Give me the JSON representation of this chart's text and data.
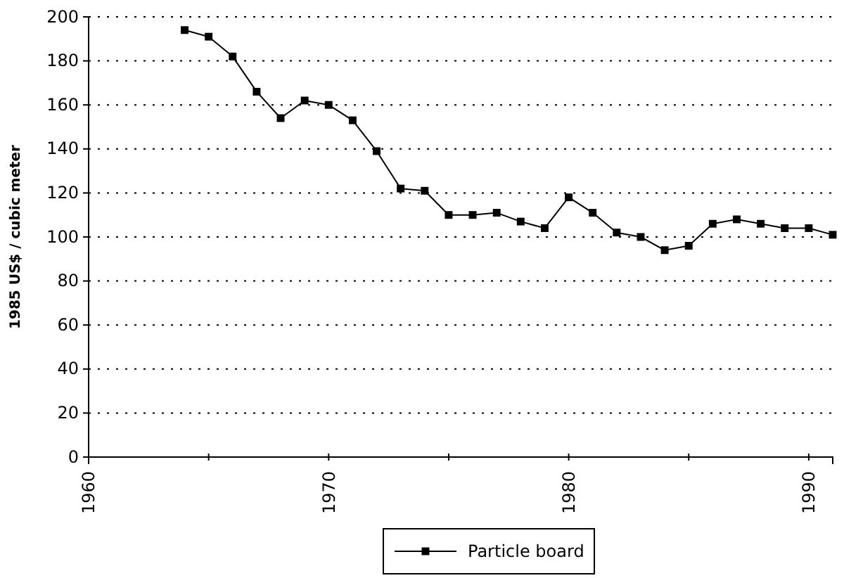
{
  "chart_data": {
    "type": "line",
    "ylabel": "1985 US$ / cubic meter",
    "x": [
      1964,
      1965,
      1966,
      1967,
      1968,
      1969,
      1970,
      1971,
      1972,
      1973,
      1974,
      1975,
      1976,
      1977,
      1978,
      1979,
      1980,
      1981,
      1982,
      1983,
      1984,
      1985,
      1986,
      1987,
      1988,
      1989,
      1990,
      1991
    ],
    "series": [
      {
        "name": "Particle board",
        "color": "#000000",
        "values": [
          194,
          191,
          182,
          166,
          154,
          162,
          160,
          153,
          139,
          122,
          121,
          110,
          110,
          111,
          107,
          104,
          118,
          111,
          102,
          100,
          94,
          96,
          106,
          108,
          106,
          104,
          104,
          101
        ]
      }
    ],
    "xlim": [
      1960,
      1991
    ],
    "xticks": [
      1960,
      {
        "value": 1965,
        "label": null
      },
      1970,
      {
        "value": 1975,
        "label": null
      },
      1980,
      {
        "value": 1985,
        "label": null
      },
      1990
    ],
    "ylim": [
      0,
      200
    ],
    "yticks": [
      0,
      20,
      40,
      60,
      80,
      100,
      120,
      140,
      160,
      180,
      200
    ],
    "grid": "y",
    "legend": "bottom",
    "marker": "square",
    "line_style": "solid"
  }
}
